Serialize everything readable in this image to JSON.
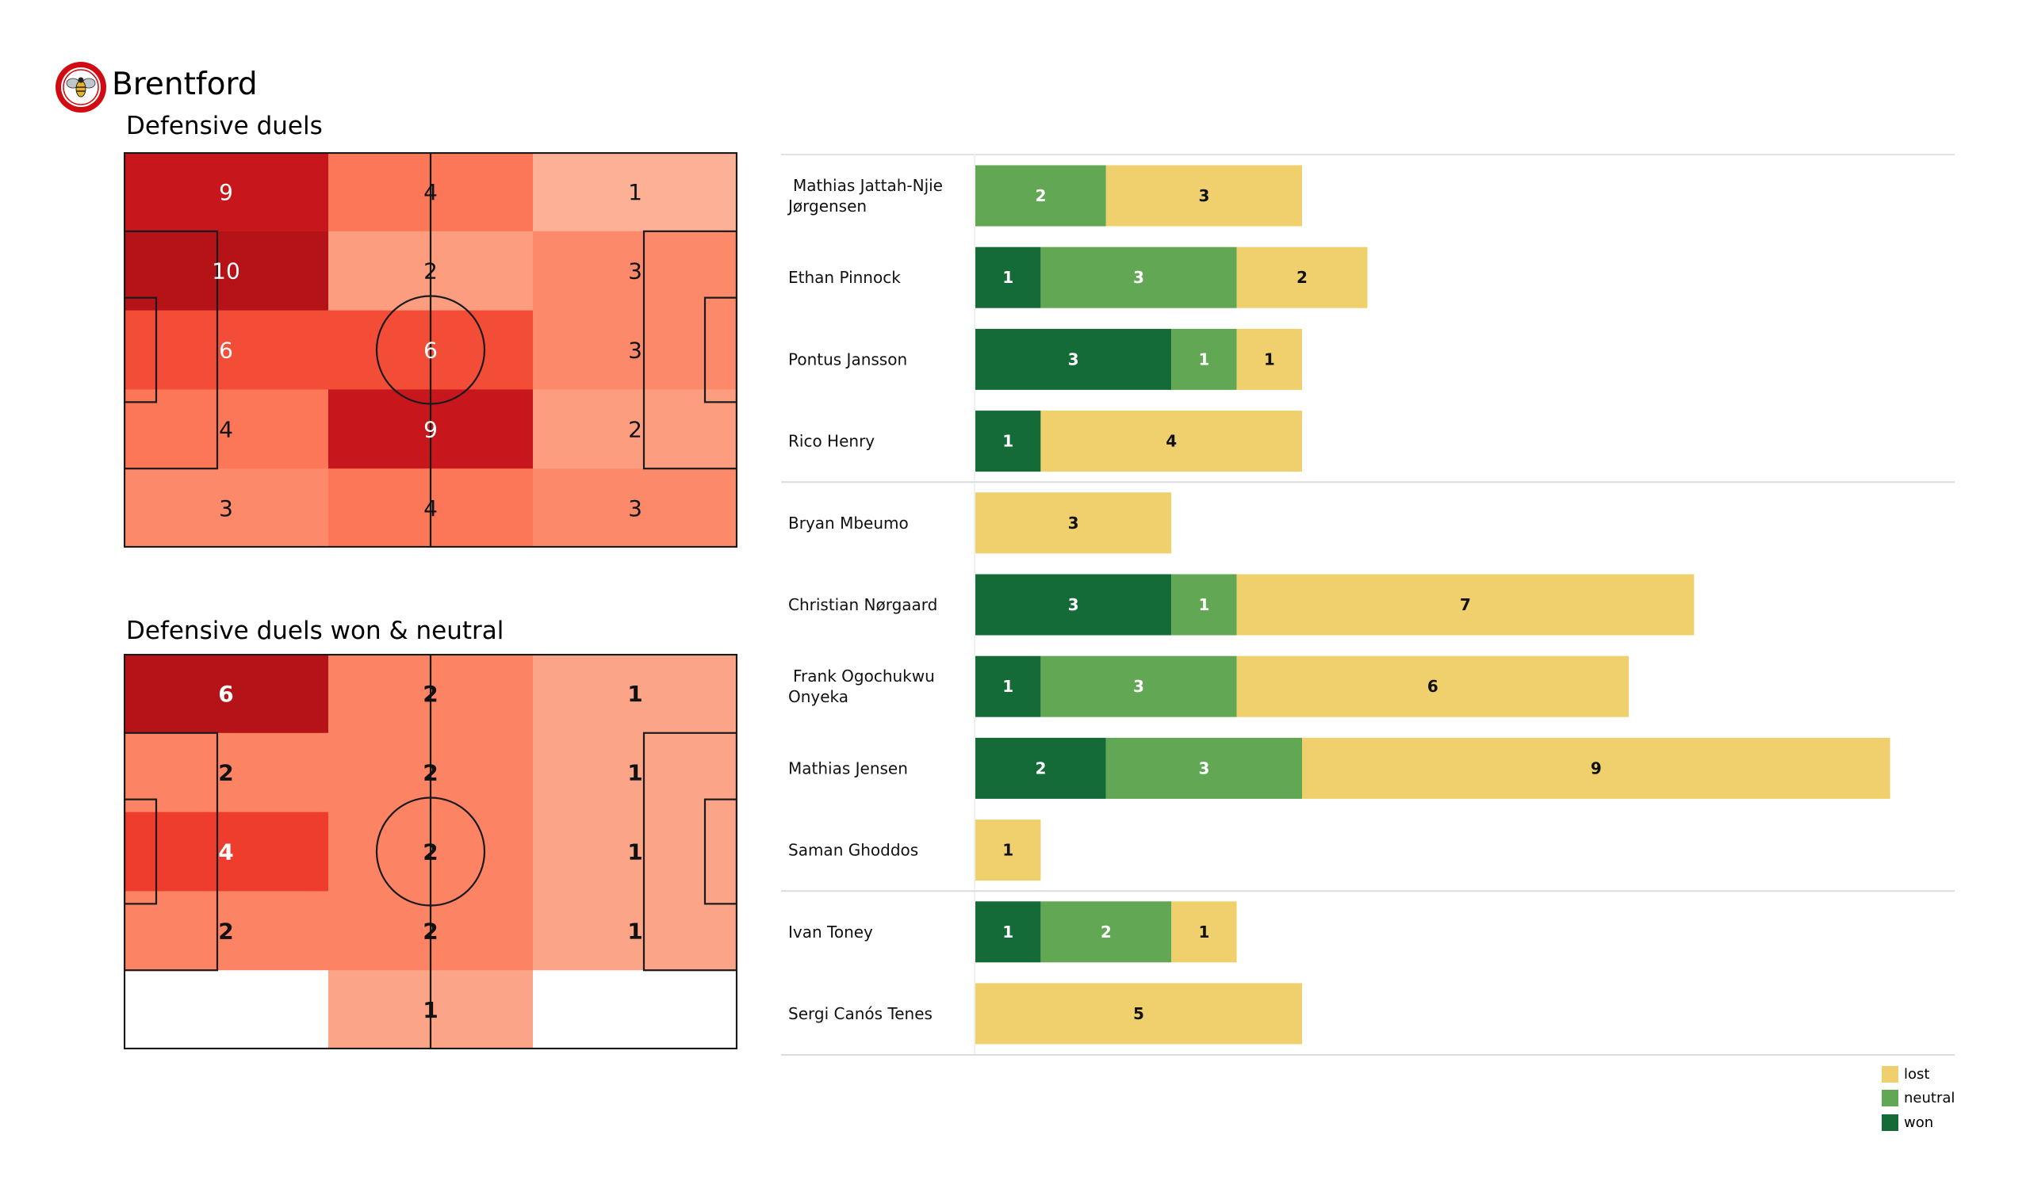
{
  "header": {
    "team": "Brentford",
    "logo_icon": "brentford-crest-icon"
  },
  "chart_data": [
    {
      "type": "heatmap",
      "title": "Defensive duels",
      "grid_cols": 3,
      "grid_rows": 5,
      "values": [
        [
          9,
          4,
          1
        ],
        [
          10,
          2,
          3
        ],
        [
          6,
          6,
          3
        ],
        [
          4,
          9,
          2
        ],
        [
          3,
          4,
          3
        ]
      ],
      "colormap": "Reds",
      "vmax": 10,
      "label_weight": "normal"
    },
    {
      "type": "heatmap",
      "title": "Defensive duels won & neutral",
      "grid_cols": 3,
      "grid_rows": 5,
      "values": [
        [
          6,
          2,
          1
        ],
        [
          2,
          2,
          1
        ],
        [
          4,
          2,
          1
        ],
        [
          2,
          2,
          1
        ],
        [
          0,
          1,
          0
        ]
      ],
      "colormap": "Reds",
      "vmax": 6,
      "label_weight": "bold"
    },
    {
      "type": "bar",
      "orientation": "horizontal",
      "stacked": true,
      "title": "",
      "categories": [
        "Mathias Jattah-Njie Jørgensen",
        "Ethan Pinnock",
        "Pontus Jansson",
        "Rico Henry",
        "Bryan Mbeumo",
        "Christian Nørgaard",
        "Frank Ogochukwu Onyeka",
        "Mathias Jensen",
        "Saman Ghoddos",
        "Ivan Toney",
        "Sergi Canós Tenes"
      ],
      "category_lines": [
        [
          "Mathias Jattah-Njie",
          "Jørgensen"
        ],
        [
          "Ethan Pinnock"
        ],
        [
          "Pontus Jansson"
        ],
        [
          "Rico Henry"
        ],
        [
          "Bryan Mbeumo"
        ],
        [
          "Christian Nørgaard"
        ],
        [
          "Frank Ogochukwu",
          "Onyeka"
        ],
        [
          "Mathias Jensen"
        ],
        [
          "Saman Ghoddos"
        ],
        [
          "Ivan Toney"
        ],
        [
          "Sergi Canós Tenes"
        ]
      ],
      "groups_after_index": [
        3,
        8
      ],
      "series": [
        {
          "name": "won",
          "color": "#156b38",
          "values": [
            0,
            1,
            3,
            1,
            0,
            3,
            1,
            2,
            0,
            1,
            0
          ]
        },
        {
          "name": "neutral",
          "color": "#62a754",
          "values": [
            2,
            3,
            1,
            0,
            0,
            1,
            3,
            3,
            0,
            2,
            0
          ]
        },
        {
          "name": "lost",
          "color": "#f0d06c",
          "values": [
            3,
            2,
            1,
            4,
            3,
            7,
            6,
            9,
            1,
            1,
            5
          ]
        }
      ],
      "xlim": [
        0,
        14
      ],
      "grid": false,
      "legend": {
        "placement": "bottom-right",
        "entries": [
          "lost",
          "neutral",
          "won"
        ]
      }
    }
  ],
  "legend": [
    {
      "label": "lost",
      "color": "#f0d06c"
    },
    {
      "label": "neutral",
      "color": "#62a754"
    },
    {
      "label": "won",
      "color": "#156b38"
    }
  ]
}
